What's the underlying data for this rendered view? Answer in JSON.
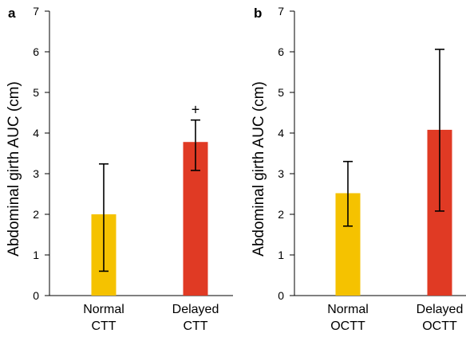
{
  "chart_data": [
    {
      "type": "bar",
      "panel": "a",
      "title": "",
      "ylabel": "Abdominal girth AUC (cm)",
      "ylim": [
        0,
        7
      ],
      "yticks": [
        "0",
        "1",
        "2",
        "3",
        "4",
        "5",
        "6",
        "7"
      ],
      "categories": [
        [
          "Normal",
          "CTT"
        ],
        [
          "Delayed",
          "CTT"
        ]
      ],
      "values": [
        2.0,
        3.78
      ],
      "error_low": [
        0.6,
        3.08
      ],
      "error_high": [
        3.24,
        4.32
      ],
      "colors": [
        "#F5C200",
        "#E03A24"
      ],
      "annotations": [
        {
          "text": "+",
          "category_index": 1
        }
      ]
    },
    {
      "type": "bar",
      "panel": "b",
      "title": "",
      "ylabel": "Abdominal girth AUC (cm)",
      "ylim": [
        0,
        7
      ],
      "yticks": [
        "0",
        "1",
        "2",
        "3",
        "4",
        "5",
        "6",
        "7"
      ],
      "categories": [
        [
          "Normal",
          "OCTT"
        ],
        [
          "Delayed",
          "OCTT"
        ]
      ],
      "values": [
        2.52,
        4.08
      ],
      "error_low": [
        1.71,
        2.08
      ],
      "error_high": [
        3.3,
        6.06
      ],
      "colors": [
        "#F5C200",
        "#E03A24"
      ],
      "annotations": []
    }
  ]
}
